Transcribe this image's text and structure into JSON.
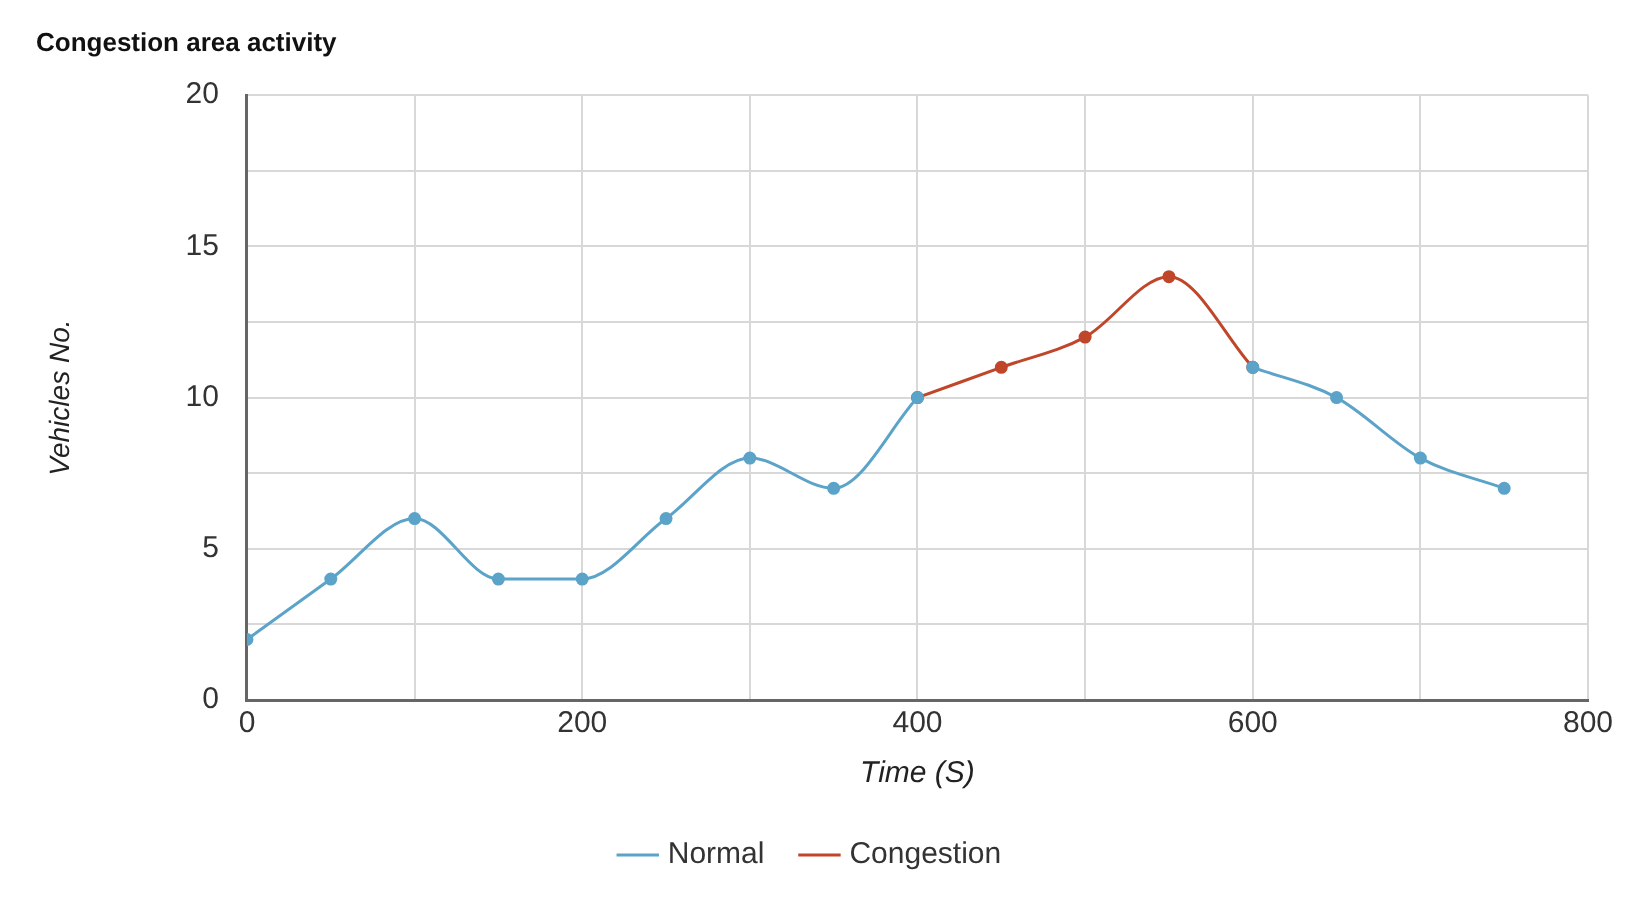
{
  "chart_data": {
    "type": "line",
    "title": "Congestion area activity",
    "xlabel": "Time (S)",
    "ylabel": "Vehicles No.",
    "xlim": [
      0,
      800
    ],
    "xticks": [
      0,
      {
        "value": 100,
        "label": null
      },
      200,
      {
        "value": 300,
        "label": null
      },
      400,
      {
        "value": 500,
        "label": null
      },
      600,
      {
        "value": 700,
        "label": null
      },
      800
    ],
    "ylim": [
      0,
      20
    ],
    "yticks": [
      0,
      {
        "value": 2.5,
        "label": null
      },
      5,
      {
        "value": 7.5,
        "label": null
      },
      10,
      {
        "value": 12.5,
        "label": null
      },
      15,
      {
        "value": 17.5,
        "label": null
      },
      20
    ],
    "grid": true,
    "legend": "bottom",
    "marker": "circle",
    "line_style": "solid",
    "series": [
      {
        "name": "Normal",
        "color": "#5ba3c9",
        "x": [
          0,
          50,
          100,
          150,
          200,
          250,
          300,
          350,
          400,
          450,
          500,
          550,
          600,
          650,
          700,
          750
        ],
        "values": [
          2,
          4,
          6,
          4,
          4,
          6,
          8,
          7,
          10,
          null,
          null,
          null,
          11,
          10,
          8,
          7
        ]
      },
      {
        "name": "Congestion",
        "color": "#c0462a",
        "x": [
          400,
          450,
          500,
          550,
          600
        ],
        "values": [
          10,
          11,
          12,
          14,
          11
        ]
      }
    ]
  }
}
